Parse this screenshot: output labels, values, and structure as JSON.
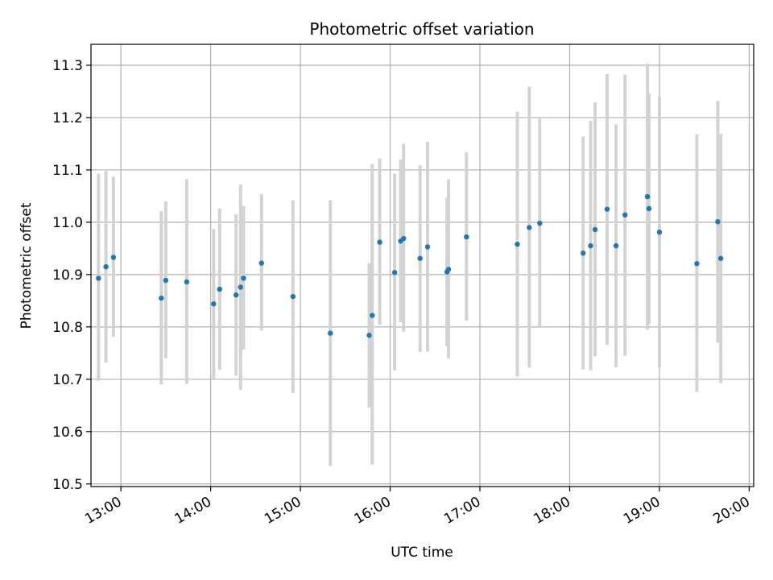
{
  "chart_data": {
    "type": "scatter",
    "title": "Photometric offset variation",
    "xlabel": "UTC time",
    "ylabel": "Photometric offset",
    "x_ticks": [
      "13:00",
      "14:00",
      "15:00",
      "16:00",
      "17:00",
      "18:00",
      "19:00",
      "20:00"
    ],
    "y_ticks": [
      "10.5",
      "10.6",
      "10.7",
      "10.8",
      "10.9",
      "11.0",
      "11.1",
      "11.2",
      "11.3"
    ],
    "xlim": [
      "12:40",
      "20:03"
    ],
    "ylim": [
      10.495,
      11.34
    ],
    "grid": true,
    "legend": "none",
    "colors": {
      "point": "#1f77b4",
      "errorbar": "#d3d3d3",
      "grid": "#b0b0b0"
    },
    "points": [
      {
        "x": "12:45",
        "y": 10.893,
        "lo": 10.697,
        "hi": 11.093
      },
      {
        "x": "12:50",
        "y": 10.915,
        "lo": 10.732,
        "hi": 11.098
      },
      {
        "x": "12:55",
        "y": 10.933,
        "lo": 10.781,
        "hi": 11.087
      },
      {
        "x": "13:27",
        "y": 10.855,
        "lo": 10.69,
        "hi": 11.021
      },
      {
        "x": "13:30",
        "y": 10.889,
        "lo": 10.74,
        "hi": 11.04
      },
      {
        "x": "13:44",
        "y": 10.886,
        "lo": 10.691,
        "hi": 11.082
      },
      {
        "x": "14:02",
        "y": 10.844,
        "lo": 10.701,
        "hi": 10.987
      },
      {
        "x": "14:06",
        "y": 10.872,
        "lo": 10.718,
        "hi": 11.026
      },
      {
        "x": "14:17",
        "y": 10.861,
        "lo": 10.707,
        "hi": 11.015
      },
      {
        "x": "14:20",
        "y": 10.876,
        "lo": 10.68,
        "hi": 11.072
      },
      {
        "x": "14:22",
        "y": 10.893,
        "lo": 10.757,
        "hi": 11.031
      },
      {
        "x": "14:34",
        "y": 10.922,
        "lo": 10.793,
        "hi": 11.054
      },
      {
        "x": "14:55",
        "y": 10.858,
        "lo": 10.674,
        "hi": 11.042
      },
      {
        "x": "15:20",
        "y": 10.788,
        "lo": 10.534,
        "hi": 11.042
      },
      {
        "x": "15:46",
        "y": 10.784,
        "lo": 10.646,
        "hi": 10.922
      },
      {
        "x": "15:48",
        "y": 10.822,
        "lo": 10.537,
        "hi": 11.111
      },
      {
        "x": "15:53",
        "y": 10.962,
        "lo": 10.804,
        "hi": 11.122
      },
      {
        "x": "16:03",
        "y": 10.904,
        "lo": 10.717,
        "hi": 11.093
      },
      {
        "x": "16:07",
        "y": 10.964,
        "lo": 10.809,
        "hi": 11.12
      },
      {
        "x": "16:09",
        "y": 10.969,
        "lo": 10.791,
        "hi": 11.15
      },
      {
        "x": "16:20",
        "y": 10.931,
        "lo": 10.752,
        "hi": 11.109
      },
      {
        "x": "16:25",
        "y": 10.953,
        "lo": 10.753,
        "hi": 11.154
      },
      {
        "x": "16:38",
        "y": 10.905,
        "lo": 10.763,
        "hi": 11.047
      },
      {
        "x": "16:39",
        "y": 10.91,
        "lo": 10.74,
        "hi": 11.082
      },
      {
        "x": "16:51",
        "y": 10.972,
        "lo": 10.812,
        "hi": 11.134
      },
      {
        "x": "17:25",
        "y": 10.958,
        "lo": 10.705,
        "hi": 11.211
      },
      {
        "x": "17:33",
        "y": 10.99,
        "lo": 10.722,
        "hi": 11.259
      },
      {
        "x": "17:40",
        "y": 10.998,
        "lo": 10.8,
        "hi": 11.198
      },
      {
        "x": "18:09",
        "y": 10.941,
        "lo": 10.719,
        "hi": 11.164
      },
      {
        "x": "18:14",
        "y": 10.955,
        "lo": 10.717,
        "hi": 11.194
      },
      {
        "x": "18:17",
        "y": 10.986,
        "lo": 10.744,
        "hi": 11.229
      },
      {
        "x": "18:25",
        "y": 11.025,
        "lo": 10.766,
        "hi": 11.283
      },
      {
        "x": "18:31",
        "y": 10.955,
        "lo": 10.723,
        "hi": 11.187
      },
      {
        "x": "18:37",
        "y": 11.014,
        "lo": 10.745,
        "hi": 11.282
      },
      {
        "x": "18:52",
        "y": 11.049,
        "lo": 10.795,
        "hi": 11.303
      },
      {
        "x": "18:53",
        "y": 11.026,
        "lo": 10.806,
        "hi": 11.246
      },
      {
        "x": "19:00",
        "y": 10.981,
        "lo": 10.724,
        "hi": 11.239
      },
      {
        "x": "19:25",
        "y": 10.921,
        "lo": 10.676,
        "hi": 11.168
      },
      {
        "x": "19:39",
        "y": 11.001,
        "lo": 10.77,
        "hi": 11.232
      },
      {
        "x": "19:41",
        "y": 10.931,
        "lo": 10.693,
        "hi": 11.169
      }
    ]
  }
}
